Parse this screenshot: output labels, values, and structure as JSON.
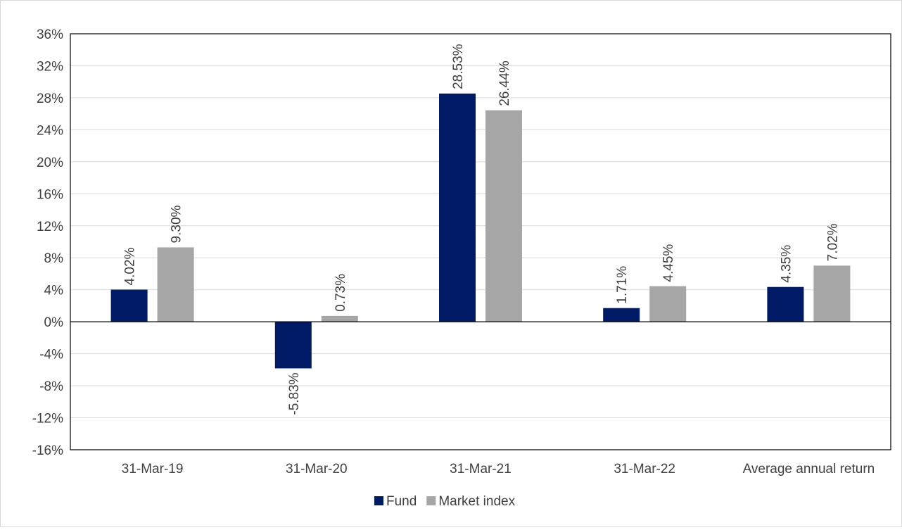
{
  "chart_data": {
    "type": "bar",
    "categories": [
      "31-Mar-19",
      "31-Mar-20",
      "31-Mar-21",
      "31-Mar-22",
      "Average annual return"
    ],
    "series": [
      {
        "name": "Fund",
        "color": "#001a66",
        "values": [
          4.02,
          -5.83,
          28.53,
          1.71,
          4.35
        ],
        "labels": [
          "4.02%",
          "-5.83%",
          "28.53%",
          "1.71%",
          "4.35%"
        ]
      },
      {
        "name": "Market index",
        "color": "#a6a6a6",
        "values": [
          9.3,
          0.73,
          26.44,
          4.45,
          7.02
        ],
        "labels": [
          "9.30%",
          "0.73%",
          "26.44%",
          "4.45%",
          "7.02%"
        ]
      }
    ],
    "ylim": [
      -16,
      36
    ],
    "ytick_values": [
      36,
      32,
      28,
      24,
      20,
      16,
      12,
      8,
      4,
      0,
      -4,
      -8,
      -12,
      -16
    ],
    "ytick_labels": [
      "36%",
      "32%",
      "28%",
      "24%",
      "20%",
      "16%",
      "12%",
      "8%",
      "4%",
      "0%",
      "-4%",
      "-8%",
      "-12%",
      "-16%"
    ],
    "grid": true,
    "legend_position": "bottom",
    "title": "",
    "xlabel": "",
    "ylabel": ""
  }
}
